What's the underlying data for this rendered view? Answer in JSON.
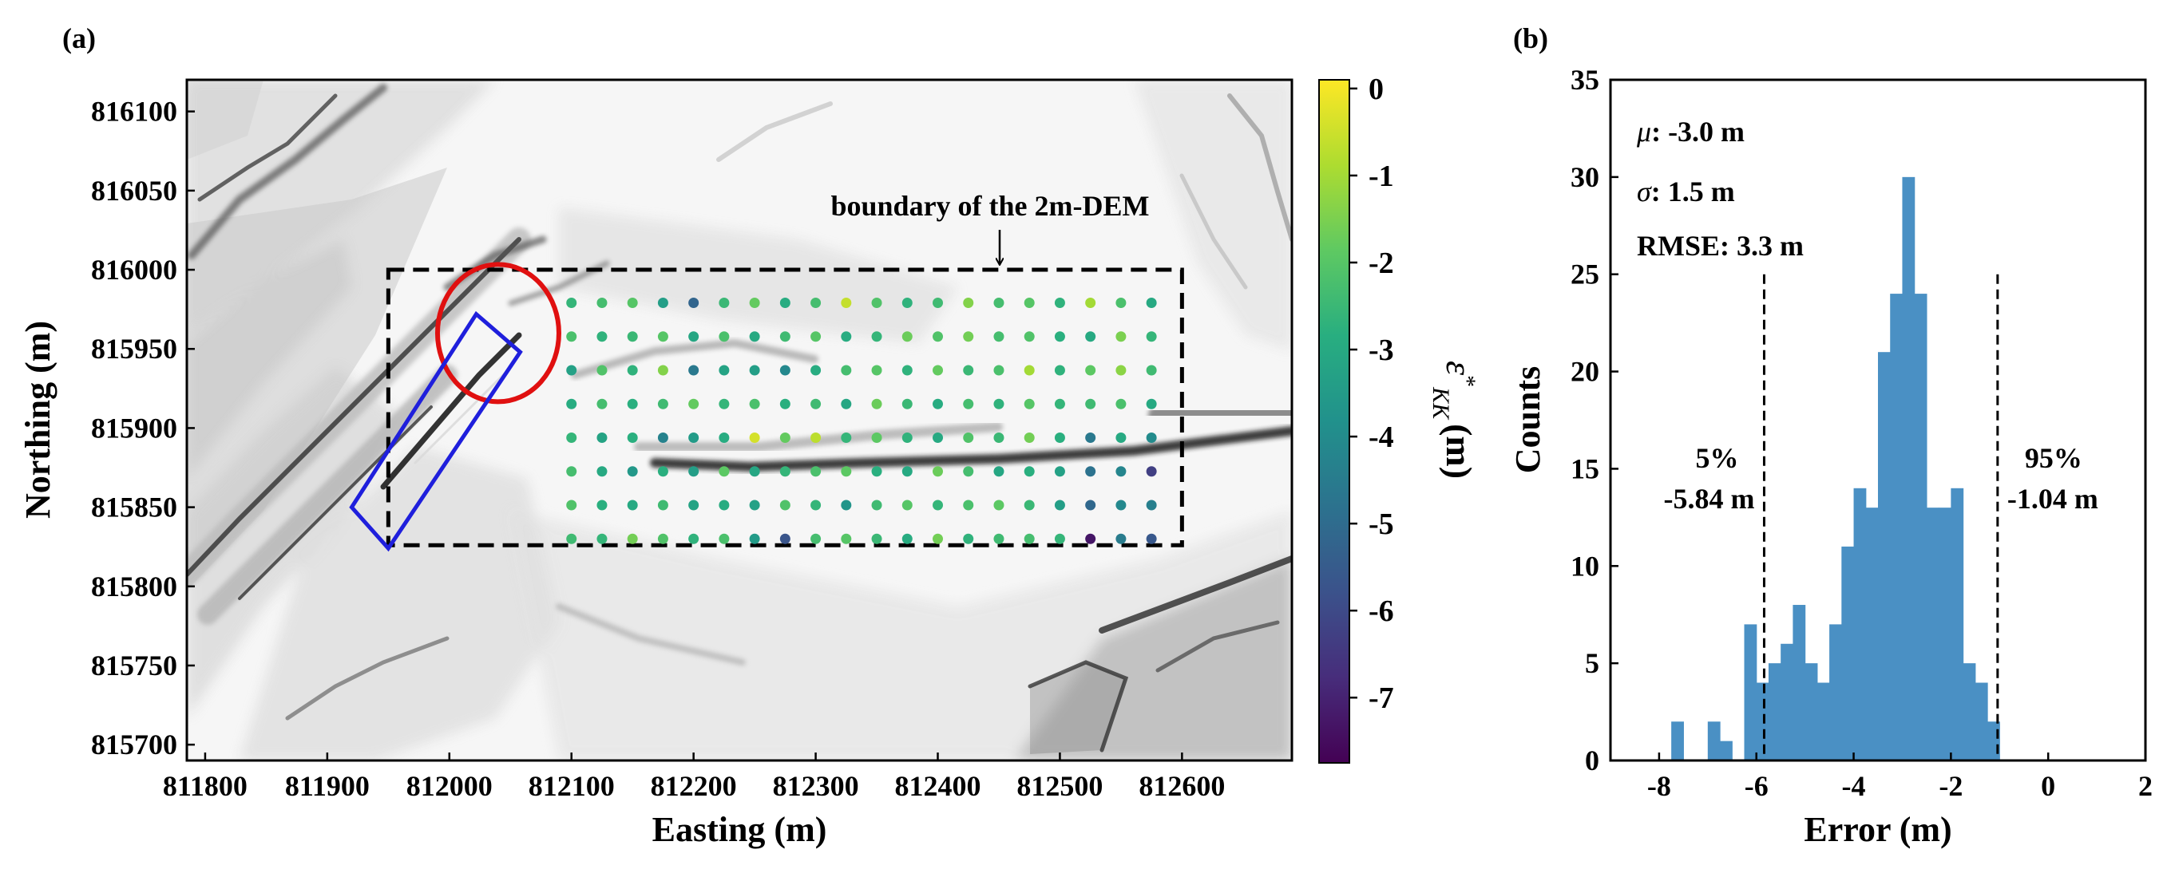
{
  "chart_data": [
    {
      "panel_label": "(a)",
      "type": "scatter",
      "xlabel": "Easting (m)",
      "ylabel": "Northing (m)",
      "xlim": [
        811785,
        812690
      ],
      "ylim": [
        815690,
        816120
      ],
      "x_ticks": [
        811800,
        811900,
        812000,
        812100,
        812200,
        812300,
        812400,
        812500,
        812600
      ],
      "y_ticks": [
        815700,
        815750,
        815800,
        815850,
        815900,
        815950,
        816000,
        816050,
        816100
      ],
      "background": "grayscale shaded-relief DEM",
      "colorbar": {
        "label": "ε*_KK (m)",
        "label_symbol": "ε",
        "label_sup": "*",
        "label_sub": "KK",
        "label_unit": "(m)",
        "range": [
          -7.75,
          0.1
        ],
        "ticks": [
          0,
          -1,
          -2,
          -3,
          -4,
          -5,
          -6,
          -7
        ],
        "colormap": "viridis"
      },
      "grid_points": {
        "x_start": 812100,
        "x_step": 25,
        "nx": 20,
        "y_start": 815830,
        "y_step": 21.3,
        "ny": 8
      },
      "values_by_row_top_to_bottom": [
        [
          -2.6,
          -2.3,
          -2.0,
          -3.4,
          -5.2,
          -2.5,
          -1.8,
          -2.9,
          -2.3,
          -0.6,
          -2.1,
          -2.7,
          -2.4,
          -1.4,
          -2.3,
          -2.0,
          -2.7,
          -1.0,
          -2.2,
          -3.0
        ],
        [
          -2.2,
          -2.7,
          -2.5,
          -2.0,
          -3.1,
          -2.2,
          -3.0,
          -2.4,
          -2.0,
          -2.9,
          -2.6,
          -1.7,
          -2.1,
          -1.6,
          -2.3,
          -2.1,
          -2.8,
          -3.0,
          -1.5,
          -2.6
        ],
        [
          -3.3,
          -2.1,
          -2.7,
          -1.4,
          -4.6,
          -3.2,
          -3.4,
          -4.1,
          -2.9,
          -2.3,
          -2.0,
          -2.7,
          -1.8,
          -2.5,
          -2.2,
          -1.0,
          -2.7,
          -1.9,
          -1.3,
          -2.4
        ],
        [
          -2.9,
          -2.3,
          -2.8,
          -2.4,
          -1.8,
          -2.6,
          -2.2,
          -2.8,
          -2.4,
          -3.1,
          -1.7,
          -2.5,
          -2.9,
          -2.3,
          -2.7,
          -2.0,
          -2.6,
          -2.4,
          -2.2,
          -3.0
        ],
        [
          -2.6,
          -3.2,
          -2.8,
          -4.3,
          -3.5,
          -2.9,
          -0.4,
          -1.8,
          -0.7,
          -2.6,
          -1.9,
          -2.7,
          -3.0,
          -2.1,
          -2.5,
          -1.6,
          -2.8,
          -4.6,
          -3.0,
          -4.0
        ],
        [
          -2.3,
          -3.0,
          -3.6,
          -2.8,
          -3.4,
          -1.9,
          -3.1,
          -2.6,
          -2.2,
          -1.9,
          -2.8,
          -3.0,
          -1.7,
          -2.3,
          -3.1,
          -2.8,
          -3.3,
          -4.8,
          -4.2,
          -6.3
        ],
        [
          -2.1,
          -2.8,
          -3.0,
          -2.4,
          -3.2,
          -2.9,
          -3.3,
          -2.1,
          -2.6,
          -3.7,
          -2.4,
          -2.0,
          -2.6,
          -2.2,
          -1.9,
          -2.5,
          -3.4,
          -5.1,
          -4.1,
          -4.4
        ],
        [
          -2.4,
          -2.6,
          -1.6,
          -2.1,
          -2.7,
          -2.2,
          -3.5,
          -5.7,
          -2.3,
          -2.0,
          -2.5,
          -2.9,
          -1.6,
          -2.7,
          -2.4,
          -2.3,
          -2.6,
          -7.3,
          -4.5,
          -5.6
        ]
      ],
      "annotations": {
        "dem_boundary_label": "boundary of the 2m-DEM",
        "dem_boundary_box": [
          811950,
          815826,
          812600,
          816000
        ],
        "red_ellipse_center": [
          812040,
          815960
        ],
        "blue_rectangle_corners": [
          [
            811920,
            815850
          ],
          [
            812022,
            815972
          ],
          [
            812058,
            815948
          ],
          [
            811950,
            815824
          ]
        ]
      },
      "annotation_colors": {
        "ellipse": "#e01010",
        "rectangle": "#1f1fdc",
        "boundary": "#000000"
      }
    },
    {
      "panel_label": "(b)",
      "type": "bar",
      "subtype": "histogram",
      "xlabel": "Error (m)",
      "ylabel": "Counts",
      "xlim": [
        -9,
        2
      ],
      "ylim": [
        0,
        35
      ],
      "x_ticks": [
        -8,
        -6,
        -4,
        -2,
        0,
        2
      ],
      "y_ticks": [
        0,
        5,
        10,
        15,
        20,
        25,
        30,
        35
      ],
      "bin_width": 0.25,
      "bin_left_edges": [
        -7.75,
        -7.5,
        -7.25,
        -7.0,
        -6.75,
        -6.5,
        -6.25,
        -6.0,
        -5.75,
        -5.5,
        -5.25,
        -5.0,
        -4.75,
        -4.5,
        -4.25,
        -4.0,
        -3.75,
        -3.5,
        -3.25,
        -3.0,
        -2.75,
        -2.5,
        -2.25,
        -2.0,
        -1.75,
        -1.5,
        -1.25,
        -1.0,
        -0.75,
        -0.5,
        -0.25
      ],
      "counts": [
        2,
        0,
        0,
        2,
        1,
        0,
        7,
        4,
        5,
        6,
        8,
        5,
        4,
        7,
        11,
        14,
        13,
        21,
        24,
        30,
        24,
        13,
        13,
        14,
        5,
        4,
        2,
        0,
        0,
        0,
        0
      ],
      "bar_color": "#4a90c4",
      "stats": {
        "mu": "μ: -3.0 m",
        "sigma": "σ: 1.5 m",
        "rmse": "RMSE: 3.3 m"
      },
      "percentile_lines": [
        {
          "x": -5.84,
          "label_pct": "5%",
          "label_val": "-5.84 m"
        },
        {
          "x": -1.04,
          "label_pct": "95%",
          "label_val": "-1.04 m"
        }
      ]
    }
  ]
}
